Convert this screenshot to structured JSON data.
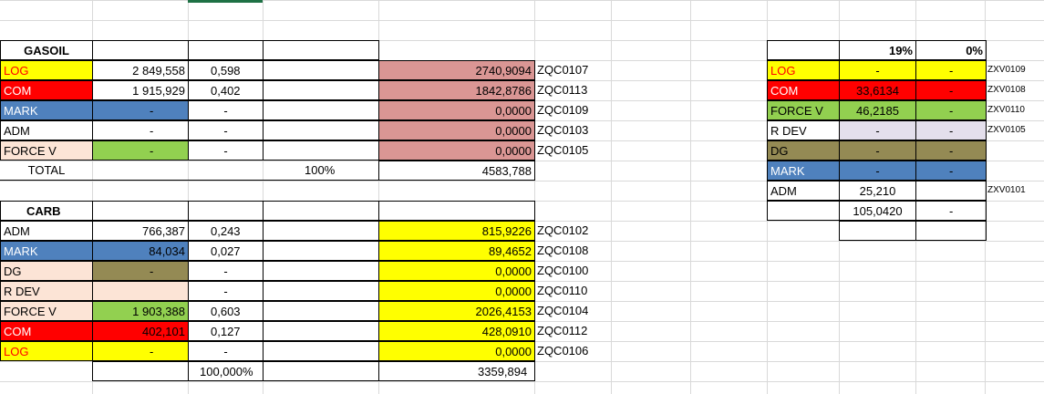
{
  "colors": {
    "yellow": "#ffff00",
    "red": "#ff0000",
    "blue": "#4f81bd",
    "peach": "#fce4d6",
    "green": "#92d050",
    "olive": "#948a54",
    "lavender": "#e4dfec",
    "rose": "#da9694",
    "gridline": "#d9d9d9"
  },
  "gasoil": {
    "title": "GASOIL",
    "rows": [
      {
        "label": "LOG",
        "qty": "2 849,558",
        "ratio": "0,598",
        "value": "2740,9094",
        "code": "ZQC0107"
      },
      {
        "label": "COM",
        "qty": "1 915,929",
        "ratio": "0,402",
        "value": "1842,8786",
        "code": "ZQC0113"
      },
      {
        "label": "MARK",
        "qty": "-",
        "ratio": "-",
        "value": "0,0000",
        "code": "ZQC0109"
      },
      {
        "label": "ADM",
        "qty": "-",
        "ratio": "-",
        "value": "0,0000",
        "code": "ZQC0103"
      },
      {
        "label": "FORCE V",
        "qty": "-",
        "ratio": "-",
        "value": "0,0000",
        "code": "ZQC0105"
      }
    ],
    "total_label": "TOTAL",
    "total_pct": "100%",
    "total_value": "4583,788"
  },
  "carb": {
    "title": "CARB",
    "rows": [
      {
        "label": "ADM",
        "qty": "766,387",
        "ratio": "0,243",
        "value": "815,9226",
        "code": "ZQC0102"
      },
      {
        "label": "MARK",
        "qty": "84,034",
        "ratio": "0,027",
        "value": "89,4652",
        "code": "ZQC0108"
      },
      {
        "label": "DG",
        "qty": "-",
        "ratio": "-",
        "value": "0,0000",
        "code": "ZQC0100"
      },
      {
        "label": "R DEV",
        "qty": "",
        "ratio": "-",
        "value": "0,0000",
        "code": "ZQC0110"
      },
      {
        "label": "FORCE V",
        "qty": "1 903,388",
        "ratio": "0,603",
        "value": "2026,4153",
        "code": "ZQC0104"
      },
      {
        "label": "COM",
        "qty": "402,101",
        "ratio": "0,127",
        "value": "428,0910",
        "code": "ZQC0112"
      },
      {
        "label": "LOG",
        "qty": "-",
        "ratio": "-",
        "value": "0,0000",
        "code": "ZQC0106"
      }
    ],
    "total_pct": "100,000%",
    "total_value": "3359,894"
  },
  "right": {
    "header_pct1": "19%",
    "header_pct2": "0%",
    "rows": [
      {
        "label": "LOG",
        "v1": "-",
        "v2": "-",
        "code": "ZXV0109"
      },
      {
        "label": "COM",
        "v1": "33,6134",
        "v2": "-",
        "code": "ZXV0108"
      },
      {
        "label": "FORCE V",
        "v1": "46,2185",
        "v2": "-",
        "code": "ZXV0110"
      },
      {
        "label": "R DEV",
        "v1": "-",
        "v2": "-",
        "code": "ZXV0105"
      },
      {
        "label": "DG",
        "v1": "-",
        "v2": "-",
        "code": ""
      },
      {
        "label": "MARK",
        "v1": "-",
        "v2": "-",
        "code": ""
      },
      {
        "label": "ADM",
        "v1": "25,210",
        "v2": "",
        "code": "ZXV0101"
      }
    ],
    "total_v1": "105,0420",
    "total_v2": "-"
  }
}
